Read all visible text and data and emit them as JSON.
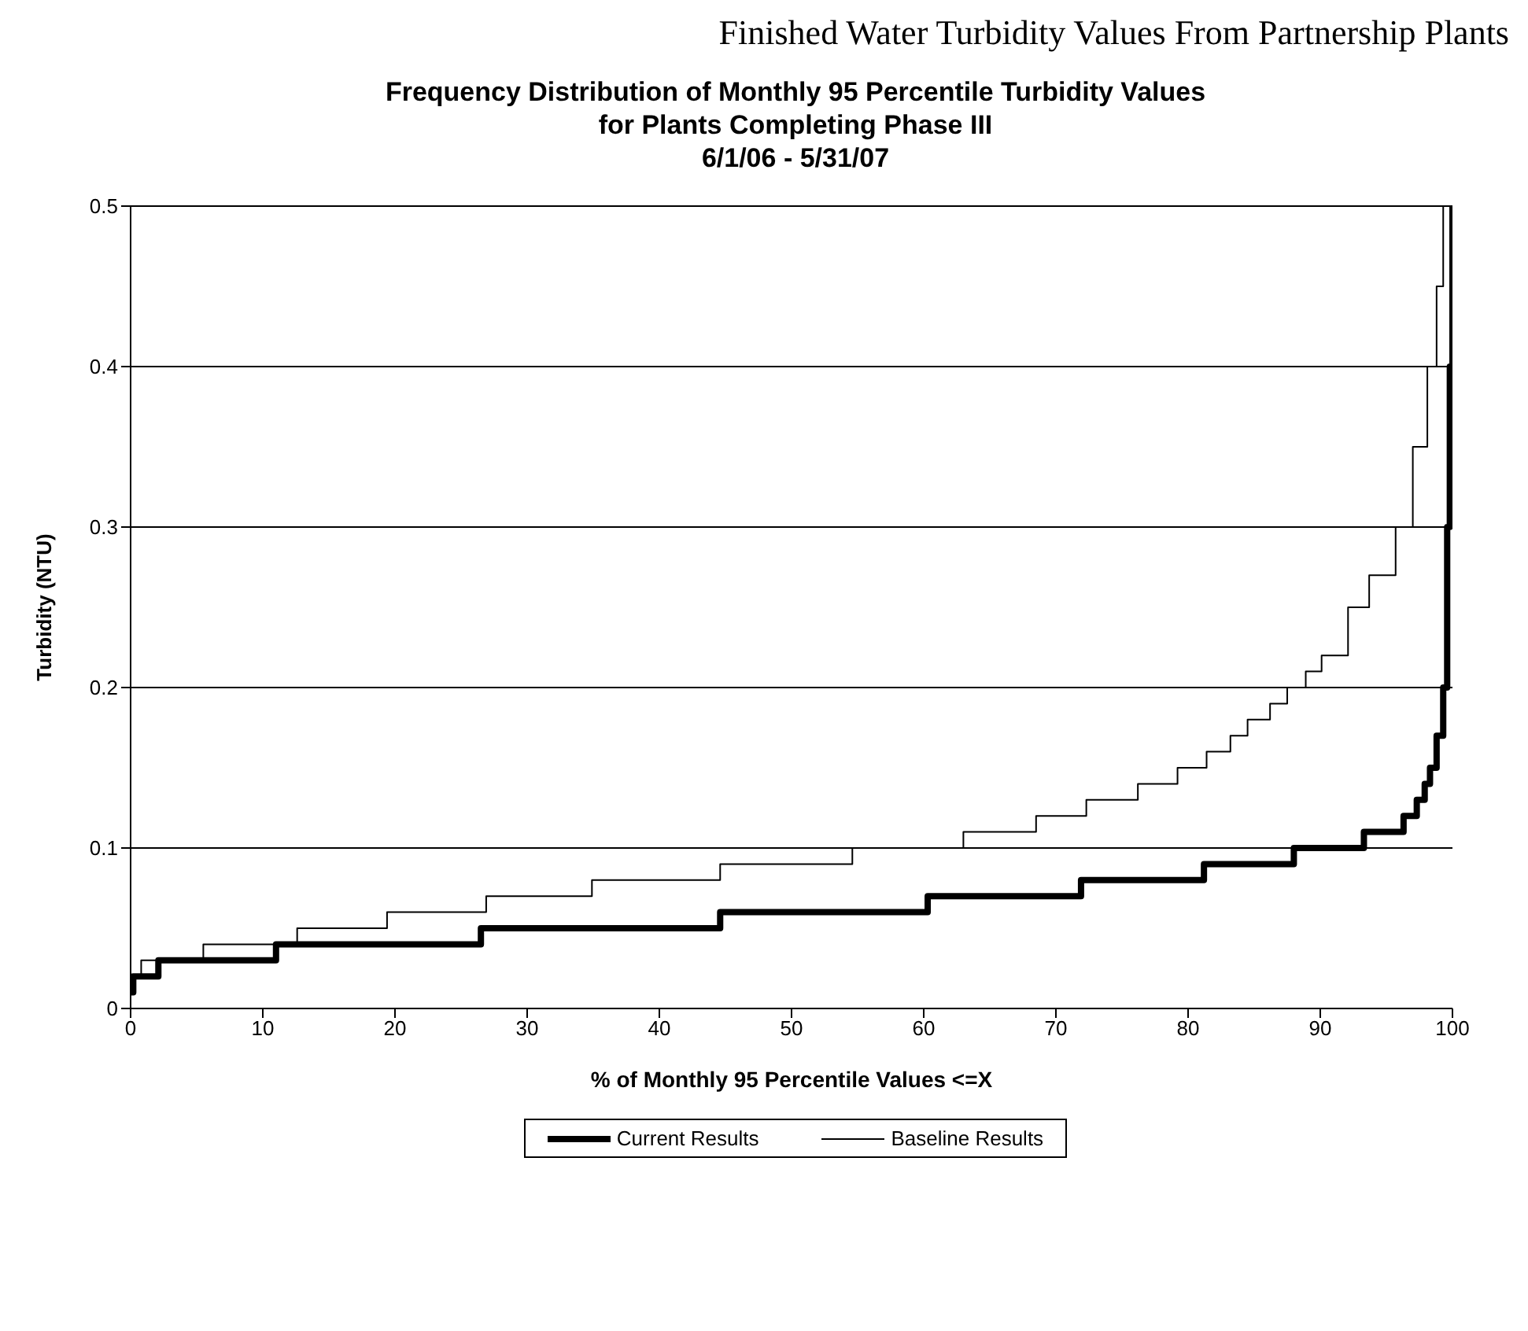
{
  "chart_data": {
    "type": "step",
    "subtitle": "Finished Water Turbidity Values From Partnership Plants",
    "title": "Frequency Distribution of Monthly 95 Percentile Turbidity Values\nfor Plants Completing Phase III\n6/1/06 - 5/31/07",
    "xlabel": "% of Monthly 95 Percentile Values <=X",
    "ylabel": "Turbidity (NTU)",
    "xlim": [
      0,
      100
    ],
    "xticks": [
      0,
      10,
      20,
      30,
      40,
      50,
      60,
      70,
      80,
      90,
      100
    ],
    "ylim": [
      0,
      0.5
    ],
    "yticks": [
      0,
      0.1,
      0.2,
      0.3,
      0.4,
      0.5
    ],
    "grid": "y",
    "legend": "bottom",
    "marker": "none",
    "series": [
      {
        "name": "Current Results",
        "color": "#000000",
        "x": [
          0,
          0.2,
          2.1,
          11,
          26.5,
          44.6,
          60.3,
          71.9,
          81.2,
          88,
          93.3,
          96.3,
          97.3,
          97.9,
          98.3,
          98.8,
          99.3,
          99.6,
          99.8,
          100
        ],
        "values": [
          0.01,
          0.02,
          0.03,
          0.04,
          0.05,
          0.06,
          0.07,
          0.08,
          0.09,
          0.1,
          0.11,
          0.12,
          0.13,
          0.14,
          0.15,
          0.17,
          0.2,
          0.3,
          0.4,
          0.5
        ]
      },
      {
        "name": "Baseline Results",
        "color": "#000000",
        "x": [
          0,
          0.8,
          5.5,
          12.6,
          19.4,
          26.9,
          34.9,
          44.6,
          54.6,
          63,
          68.5,
          72.3,
          76.2,
          79.2,
          81.4,
          83.2,
          84.5,
          86.2,
          87.5,
          88.9,
          90.1,
          92.1,
          93.7,
          95.7,
          97,
          98.1,
          98.8,
          99.3
        ],
        "values": [
          0.02,
          0.03,
          0.04,
          0.05,
          0.06,
          0.07,
          0.08,
          0.09,
          0.1,
          0.11,
          0.12,
          0.13,
          0.14,
          0.15,
          0.16,
          0.17,
          0.18,
          0.19,
          0.2,
          0.21,
          0.22,
          0.25,
          0.27,
          0.3,
          0.35,
          0.4,
          0.45,
          0.5
        ]
      }
    ]
  }
}
